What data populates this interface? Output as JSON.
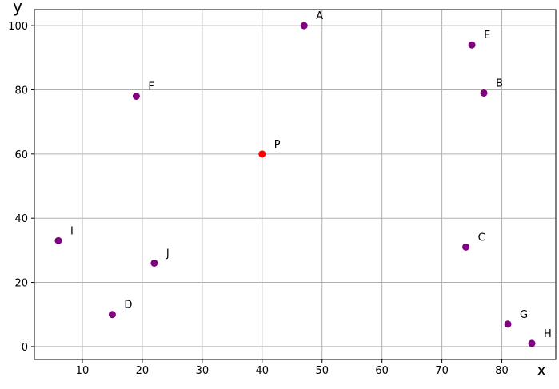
{
  "chart_data": {
    "type": "scatter",
    "xlabel": "x",
    "ylabel": "y",
    "xlim": [
      2,
      89
    ],
    "ylim": [
      -4,
      105
    ],
    "xticks": [
      10,
      20,
      30,
      40,
      50,
      60,
      70,
      80
    ],
    "yticks": [
      0,
      20,
      40,
      60,
      80,
      100
    ],
    "grid": true,
    "points": [
      {
        "label": "A",
        "x": 47,
        "y": 100,
        "color": "#800080"
      },
      {
        "label": "B",
        "x": 77,
        "y": 79,
        "color": "#800080"
      },
      {
        "label": "C",
        "x": 74,
        "y": 31,
        "color": "#800080"
      },
      {
        "label": "D",
        "x": 15,
        "y": 10,
        "color": "#800080"
      },
      {
        "label": "E",
        "x": 75,
        "y": 94,
        "color": "#800080"
      },
      {
        "label": "F",
        "x": 19,
        "y": 78,
        "color": "#800080"
      },
      {
        "label": "G",
        "x": 81,
        "y": 7,
        "color": "#800080"
      },
      {
        "label": "H",
        "x": 85,
        "y": 1,
        "color": "#800080"
      },
      {
        "label": "I",
        "x": 6,
        "y": 33,
        "color": "#800080"
      },
      {
        "label": "J",
        "x": 22,
        "y": 26,
        "color": "#800080"
      },
      {
        "label": "P",
        "x": 40,
        "y": 60,
        "color": "#ff0000"
      }
    ]
  }
}
